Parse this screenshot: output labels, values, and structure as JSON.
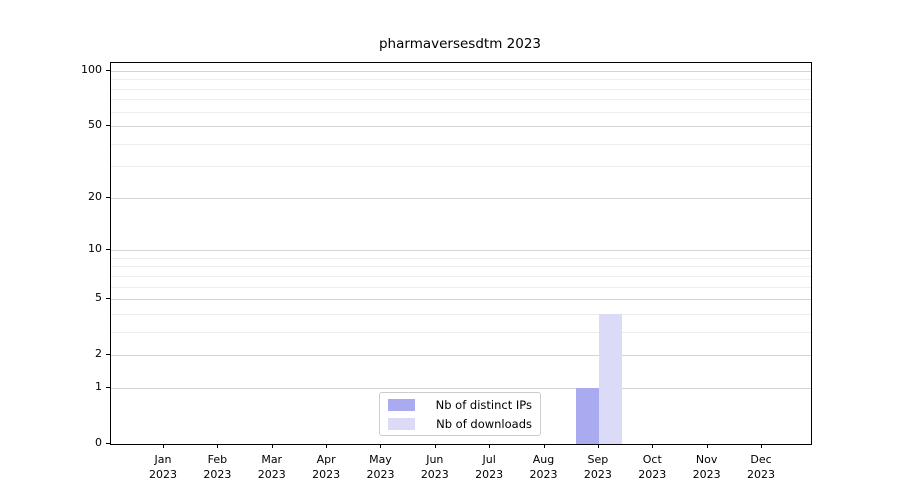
{
  "chart_data": {
    "type": "bar",
    "title": "pharmaversesdtm 2023",
    "categories": [
      "Jan",
      "Feb",
      "Mar",
      "Apr",
      "May",
      "Jun",
      "Jul",
      "Aug",
      "Sep",
      "Oct",
      "Nov",
      "Dec"
    ],
    "category_year": "2023",
    "series": [
      {
        "name": "Nb of distinct IPs",
        "color": "#aaaaf0",
        "values": [
          0,
          0,
          0,
          0,
          0,
          0,
          0,
          0,
          1,
          0,
          0,
          0
        ]
      },
      {
        "name": "Nb of downloads",
        "color": "#dbdbf8",
        "values": [
          0,
          0,
          0,
          0,
          0,
          0,
          0,
          0,
          4,
          0,
          0,
          0
        ]
      }
    ],
    "yscale": "log1p",
    "ytick_values": [
      0,
      1,
      2,
      5,
      10,
      20,
      50,
      100
    ],
    "ytick_labels": [
      "0",
      "1",
      "2",
      "5",
      "10",
      "20",
      "50",
      "100"
    ],
    "yminor_values": [
      3,
      4,
      6,
      7,
      8,
      9,
      30,
      40,
      60,
      70,
      80,
      90
    ],
    "ylim": [
      0,
      110
    ],
    "xlabel": "",
    "ylabel": "",
    "grid": "horizontal, major and minor, on",
    "legend_position": "lower center, inside plot"
  }
}
